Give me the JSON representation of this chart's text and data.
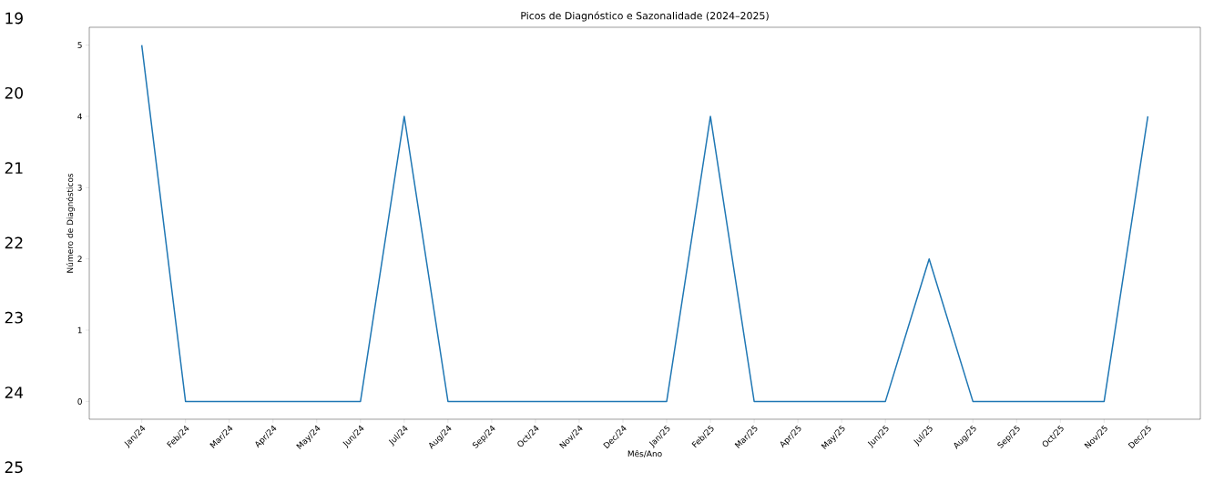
{
  "chart_data": {
    "type": "line",
    "title": "Picos de Diagnóstico e Sazonalidade (2024–2025)",
    "xlabel": "Mês/Ano",
    "ylabel": "Número de Diagnósticos",
    "categories": [
      "Jan/24",
      "Feb/24",
      "Mar/24",
      "Apr/24",
      "May/24",
      "Jun/24",
      "Jul/24",
      "Aug/24",
      "Sep/24",
      "Oct/24",
      "Nov/24",
      "Dec/24",
      "Jan/25",
      "Feb/25",
      "Mar/25",
      "Apr/25",
      "May/25",
      "Jun/25",
      "Jul/25",
      "Aug/25",
      "Sep/25",
      "Oct/25",
      "Nov/25",
      "Dec/25"
    ],
    "values": [
      5,
      0,
      0,
      0,
      0,
      0,
      4,
      0,
      0,
      0,
      0,
      0,
      0,
      4,
      0,
      0,
      0,
      0,
      2,
      0,
      0,
      0,
      0,
      4
    ],
    "color": "#1f77b4",
    "ylim": [
      -0.25,
      5.25
    ],
    "yticks": [
      0,
      1,
      2,
      3,
      4,
      5
    ],
    "grid": false,
    "marker": "none",
    "line_style": "solid",
    "annotations": [
      "19",
      "20",
      "21",
      "22",
      "23",
      "24",
      "25"
    ]
  }
}
